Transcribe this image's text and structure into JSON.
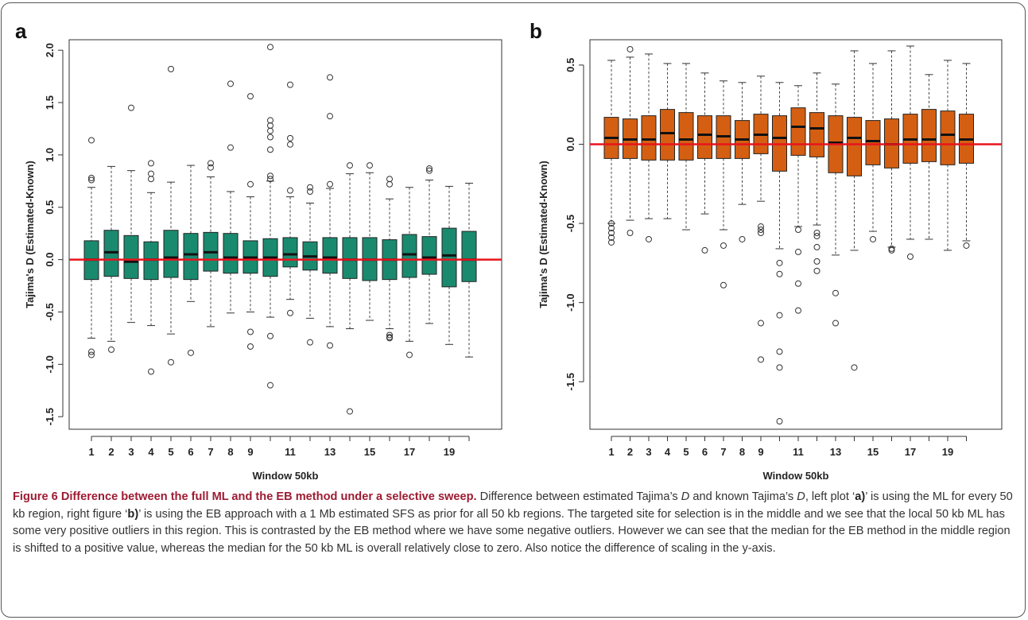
{
  "figure": {
    "caption_title": "Figure 6 Difference between the full ML and the EB method under a selective sweep.",
    "caption_seg1": " Difference between estimated Tajima’s ",
    "caption_D1": "D",
    "caption_seg2": " and known Tajima’s ",
    "caption_D2": "D",
    "caption_seg3": ", left plot ‘",
    "caption_a": "a)",
    "caption_seg4": "’ is using the ML for every 50 kb region, right figure ‘",
    "caption_b": "b)",
    "caption_seg5": "’ is using the EB approach with a 1 Mb estimated SFS as prior for all 50 kb regions. The targeted site for selection is in the middle and we see that the local 50 kb ML has some very positive outliers in this region. This is contrasted by the EB method where we have some negative outliers. However we can see that the median for the EB method in the middle region is shifted to a positive value, whereas the median for the 50 kb ML is overall relatively close to zero. Also notice the difference of scaling in the y-axis."
  },
  "chart_data": [
    {
      "panel": "a",
      "type": "boxplot",
      "xlabel": "Window 50kb",
      "ylabel": "Tajima's D (Estimated-Known)",
      "ylim": [
        -1.62,
        2.1
      ],
      "yticks": [
        "-1.5",
        "-1.0",
        "-0.5",
        "0.0",
        "0.5",
        "1.0",
        "1.5",
        "2.0"
      ],
      "ytick_values": [
        -1.5,
        -1.0,
        -0.5,
        0.0,
        0.5,
        1.0,
        1.5,
        2.0
      ],
      "categories": [
        "1",
        "2",
        "3",
        "4",
        "5",
        "6",
        "7",
        "8",
        "9",
        "10",
        "11",
        "12",
        "13",
        "14",
        "15",
        "16",
        "17",
        "18",
        "19",
        "20"
      ],
      "xtick_labels": [
        "1",
        "2",
        "3",
        "4",
        "5",
        "6",
        "7",
        "8",
        "9",
        "",
        "11",
        "",
        "13",
        "",
        "15",
        "",
        "17",
        "",
        "19",
        ""
      ],
      "box_color": "#1a8a6f",
      "reference_line": {
        "y": 0,
        "color": "#e8141c"
      },
      "boxes": [
        {
          "low": -0.75,
          "q1": -0.19,
          "median": 0.0,
          "q3": 0.18,
          "high": 0.69,
          "outliers": [
            1.14,
            0.78,
            0.76,
            -0.88,
            -0.91
          ]
        },
        {
          "low": -0.78,
          "q1": -0.16,
          "median": 0.07,
          "q3": 0.28,
          "high": 0.89,
          "outliers": [
            -0.86
          ]
        },
        {
          "low": -0.6,
          "q1": -0.18,
          "median": -0.02,
          "q3": 0.23,
          "high": 0.85,
          "outliers": [
            1.45
          ]
        },
        {
          "low": -0.63,
          "q1": -0.19,
          "median": 0.0,
          "q3": 0.17,
          "high": 0.64,
          "outliers": [
            0.92,
            0.82,
            0.77,
            -1.07
          ]
        },
        {
          "low": -0.71,
          "q1": -0.17,
          "median": 0.02,
          "q3": 0.28,
          "high": 0.74,
          "outliers": [
            1.82,
            -0.98
          ]
        },
        {
          "low": -0.4,
          "q1": -0.19,
          "median": 0.05,
          "q3": 0.25,
          "high": 0.9,
          "outliers": [
            -0.89
          ]
        },
        {
          "low": -0.64,
          "q1": -0.11,
          "median": 0.07,
          "q3": 0.26,
          "high": 0.79,
          "outliers": [
            0.92,
            0.88
          ]
        },
        {
          "low": -0.51,
          "q1": -0.13,
          "median": 0.02,
          "q3": 0.25,
          "high": 0.65,
          "outliers": [
            1.68,
            1.07
          ]
        },
        {
          "low": -0.5,
          "q1": -0.13,
          "median": 0.02,
          "q3": 0.18,
          "high": 0.6,
          "outliers": [
            1.56,
            0.72,
            -0.69,
            -0.83
          ]
        },
        {
          "low": -0.55,
          "q1": -0.16,
          "median": 0.02,
          "q3": 0.2,
          "high": 0.75,
          "outliers": [
            2.03,
            1.33,
            1.28,
            1.23,
            1.17,
            1.05,
            0.8,
            0.77,
            -0.73,
            -1.2
          ]
        },
        {
          "low": -0.38,
          "q1": -0.07,
          "median": 0.05,
          "q3": 0.21,
          "high": 0.6,
          "outliers": [
            1.67,
            1.16,
            1.1,
            0.66,
            -0.51
          ]
        },
        {
          "low": -0.56,
          "q1": -0.1,
          "median": 0.03,
          "q3": 0.17,
          "high": 0.54,
          "outliers": [
            0.69,
            0.65,
            -0.79
          ]
        },
        {
          "low": -0.64,
          "q1": -0.13,
          "median": 0.02,
          "q3": 0.21,
          "high": 0.68,
          "outliers": [
            1.74,
            1.37,
            0.72,
            -0.82
          ]
        },
        {
          "low": -0.66,
          "q1": -0.18,
          "median": 0.0,
          "q3": 0.21,
          "high": 0.82,
          "outliers": [
            0.9,
            -1.45
          ]
        },
        {
          "low": -0.58,
          "q1": -0.2,
          "median": 0.0,
          "q3": 0.21,
          "high": 0.83,
          "outliers": [
            0.9
          ]
        },
        {
          "low": -0.66,
          "q1": -0.19,
          "median": 0.0,
          "q3": 0.19,
          "high": 0.58,
          "outliers": [
            0.77,
            0.72,
            -0.72,
            -0.74,
            -0.75
          ]
        },
        {
          "low": -0.78,
          "q1": -0.17,
          "median": 0.05,
          "q3": 0.24,
          "high": 0.69,
          "outliers": [
            -0.91
          ]
        },
        {
          "low": -0.61,
          "q1": -0.14,
          "median": 0.02,
          "q3": 0.22,
          "high": 0.76,
          "outliers": [
            0.87,
            0.85
          ]
        },
        {
          "low": -0.81,
          "q1": -0.26,
          "median": 0.04,
          "q3": 0.3,
          "high": 0.7,
          "outliers": []
        },
        {
          "low": -0.93,
          "q1": -0.21,
          "median": 0.0,
          "q3": 0.27,
          "high": 0.73,
          "outliers": []
        }
      ]
    },
    {
      "panel": "b",
      "type": "boxplot",
      "xlabel": "Window 50kb",
      "ylabel": "Tajima's D (Estimated-Known)",
      "ylim": [
        -1.8,
        0.66
      ],
      "yticks": [
        "-1.5",
        "-1.0",
        "-0.5",
        "0.0",
        "0.5"
      ],
      "ytick_values": [
        -1.5,
        -1.0,
        -0.5,
        0.0,
        0.5
      ],
      "categories": [
        "1",
        "2",
        "3",
        "4",
        "5",
        "6",
        "7",
        "8",
        "9",
        "10",
        "11",
        "12",
        "13",
        "14",
        "15",
        "16",
        "17",
        "18",
        "19",
        "20"
      ],
      "xtick_labels": [
        "1",
        "2",
        "3",
        "4",
        "5",
        "6",
        "7",
        "8",
        "9",
        "",
        "11",
        "",
        "13",
        "",
        "15",
        "",
        "17",
        "",
        "19",
        ""
      ],
      "box_color": "#d45f12",
      "reference_line": {
        "y": 0,
        "color": "#e8141c"
      },
      "boxes": [
        {
          "low": -0.5,
          "q1": -0.09,
          "median": 0.04,
          "q3": 0.17,
          "high": 0.53,
          "outliers": [
            -0.5,
            -0.53,
            -0.56,
            -0.59,
            -0.62
          ]
        },
        {
          "low": -0.48,
          "q1": -0.09,
          "median": 0.03,
          "q3": 0.16,
          "high": 0.55,
          "outliers": [
            0.6,
            -0.56
          ]
        },
        {
          "low": -0.47,
          "q1": -0.1,
          "median": 0.03,
          "q3": 0.18,
          "high": 0.57,
          "outliers": [
            -0.6
          ]
        },
        {
          "low": -0.47,
          "q1": -0.1,
          "median": 0.07,
          "q3": 0.22,
          "high": 0.51,
          "outliers": []
        },
        {
          "low": -0.54,
          "q1": -0.1,
          "median": 0.03,
          "q3": 0.2,
          "high": 0.51,
          "outliers": []
        },
        {
          "low": -0.44,
          "q1": -0.09,
          "median": 0.06,
          "q3": 0.18,
          "high": 0.45,
          "outliers": [
            -0.67
          ]
        },
        {
          "low": -0.54,
          "q1": -0.09,
          "median": 0.05,
          "q3": 0.18,
          "high": 0.4,
          "outliers": [
            -0.64,
            -0.89
          ]
        },
        {
          "low": -0.38,
          "q1": -0.09,
          "median": 0.03,
          "q3": 0.15,
          "high": 0.39,
          "outliers": [
            -0.6
          ]
        },
        {
          "low": -0.36,
          "q1": -0.06,
          "median": 0.06,
          "q3": 0.19,
          "high": 0.43,
          "outliers": [
            -0.52,
            -0.54,
            -0.56,
            -1.13,
            -1.36
          ]
        },
        {
          "low": -0.66,
          "q1": -0.17,
          "median": 0.04,
          "q3": 0.18,
          "high": 0.39,
          "outliers": [
            -0.75,
            -0.82,
            -1.08,
            -1.31,
            -1.41,
            -1.75
          ]
        },
        {
          "low": -0.52,
          "q1": -0.07,
          "median": 0.11,
          "q3": 0.23,
          "high": 0.37,
          "outliers": [
            -0.54,
            -0.68,
            -0.88,
            -1.05
          ]
        },
        {
          "low": -0.51,
          "q1": -0.08,
          "median": 0.1,
          "q3": 0.2,
          "high": 0.45,
          "outliers": [
            -0.56,
            -0.58,
            -0.65,
            -0.74,
            -0.8
          ]
        },
        {
          "low": -0.7,
          "q1": -0.18,
          "median": 0.01,
          "q3": 0.18,
          "high": 0.38,
          "outliers": [
            -0.94,
            -1.13
          ]
        },
        {
          "low": -0.67,
          "q1": -0.2,
          "median": 0.04,
          "q3": 0.17,
          "high": 0.59,
          "outliers": [
            -1.41
          ]
        },
        {
          "low": -0.55,
          "q1": -0.13,
          "median": 0.02,
          "q3": 0.15,
          "high": 0.51,
          "outliers": [
            -0.6
          ]
        },
        {
          "low": -0.65,
          "q1": -0.15,
          "median": 0.0,
          "q3": 0.16,
          "high": 0.59,
          "outliers": [
            -0.66,
            -0.67
          ]
        },
        {
          "low": -0.6,
          "q1": -0.12,
          "median": 0.03,
          "q3": 0.19,
          "high": 0.62,
          "outliers": [
            -0.71
          ]
        },
        {
          "low": -0.6,
          "q1": -0.11,
          "median": 0.03,
          "q3": 0.22,
          "high": 0.44,
          "outliers": []
        },
        {
          "low": -0.67,
          "q1": -0.13,
          "median": 0.06,
          "q3": 0.21,
          "high": 0.53,
          "outliers": []
        },
        {
          "low": -0.61,
          "q1": -0.12,
          "median": 0.03,
          "q3": 0.19,
          "high": 0.51,
          "outliers": [
            -0.64
          ]
        }
      ]
    }
  ]
}
